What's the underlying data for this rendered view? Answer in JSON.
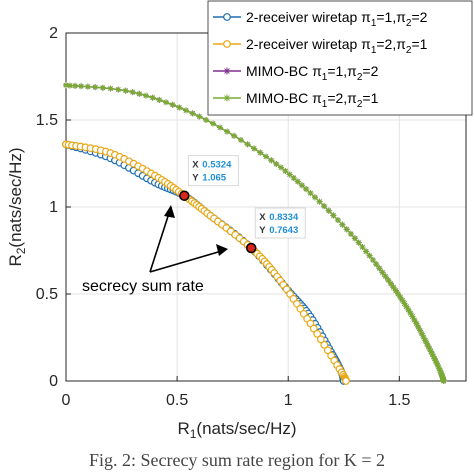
{
  "chart_data": {
    "type": "line",
    "xlabel": "R",
    "xlabel_sub": "1",
    "xlabel_unit": "(nats/sec/Hz)",
    "ylabel": "R",
    "ylabel_sub": "2",
    "ylabel_unit": "(nats/sec/Hz)",
    "xlim": [
      0,
      1.8
    ],
    "ylim": [
      0,
      2
    ],
    "xticks": [
      "0",
      "0.5",
      "1",
      "1.5"
    ],
    "yticks": [
      "0",
      "0.5",
      "1",
      "1.5",
      "2"
    ],
    "grid": true,
    "legend_position": "top-right",
    "series": [
      {
        "name": "2-receiver wiretap π₁=1,π₂=2",
        "color": "#1f6fb4",
        "marker": "circle",
        "x": [
          0,
          0.2,
          0.4,
          0.5324,
          0.65,
          0.8334,
          1.0,
          1.1,
          1.2,
          1.24,
          1.25
        ],
        "y": [
          1.36,
          1.28,
          1.14,
          1.065,
          0.95,
          0.7643,
          0.52,
          0.37,
          0.15,
          0.05,
          0
        ]
      },
      {
        "name": "2-receiver wiretap π₁=2,π₂=1",
        "color": "#e8a817",
        "marker": "circle",
        "x": [
          0,
          0.2,
          0.4,
          0.5324,
          0.65,
          0.8334,
          0.95,
          1.1,
          1.24,
          1.26
        ],
        "y": [
          1.36,
          1.31,
          1.18,
          1.065,
          0.95,
          0.7643,
          0.6,
          0.33,
          0.05,
          0
        ]
      },
      {
        "name": "MIMO-BC π₁=1,π₂=2",
        "color": "#7e2f8e",
        "marker": "asterisk",
        "x": [
          0,
          0.3,
          0.6,
          0.9,
          1.1,
          1.3,
          1.45,
          1.55,
          1.63,
          1.68,
          1.7
        ],
        "y": [
          1.7,
          1.66,
          1.52,
          1.29,
          1.08,
          0.82,
          0.58,
          0.39,
          0.2,
          0.07,
          0
        ]
      },
      {
        "name": "MIMO-BC π₁=2,π₂=1",
        "color": "#77ac30",
        "marker": "asterisk",
        "x": [
          0,
          0.3,
          0.6,
          0.9,
          1.1,
          1.3,
          1.45,
          1.55,
          1.63,
          1.68,
          1.7
        ],
        "y": [
          1.7,
          1.66,
          1.52,
          1.29,
          1.08,
          0.82,
          0.58,
          0.39,
          0.2,
          0.07,
          0
        ]
      }
    ],
    "legend_entries": [
      {
        "text": "2-receiver wiretap π",
        "s1": "1",
        "mid": "=1,π",
        "s2": "2",
        "tail": "=2"
      },
      {
        "text": "2-receiver wiretap π",
        "s1": "1",
        "mid": "=2,π",
        "s2": "2",
        "tail": "=1"
      },
      {
        "text": "MIMO-BC π",
        "s1": "1",
        "mid": "=1,π",
        "s2": "2",
        "tail": "=2"
      },
      {
        "text": "MIMO-BC π",
        "s1": "1",
        "mid": "=2,π",
        "s2": "2",
        "tail": "=1"
      }
    ],
    "datatips": [
      {
        "x": 0.5324,
        "y": 1.065,
        "x_label": "X",
        "x_value": "0.5324",
        "y_label": "Y",
        "y_value": "1.065"
      },
      {
        "x": 0.8334,
        "y": 0.7643,
        "x_label": "X",
        "x_value": "0.8334",
        "y_label": "Y",
        "y_value": "0.7643"
      }
    ],
    "annotation": "secrecy sum rate"
  },
  "caption": "Fig. 2: Secrecy sum rate region for K = 2"
}
